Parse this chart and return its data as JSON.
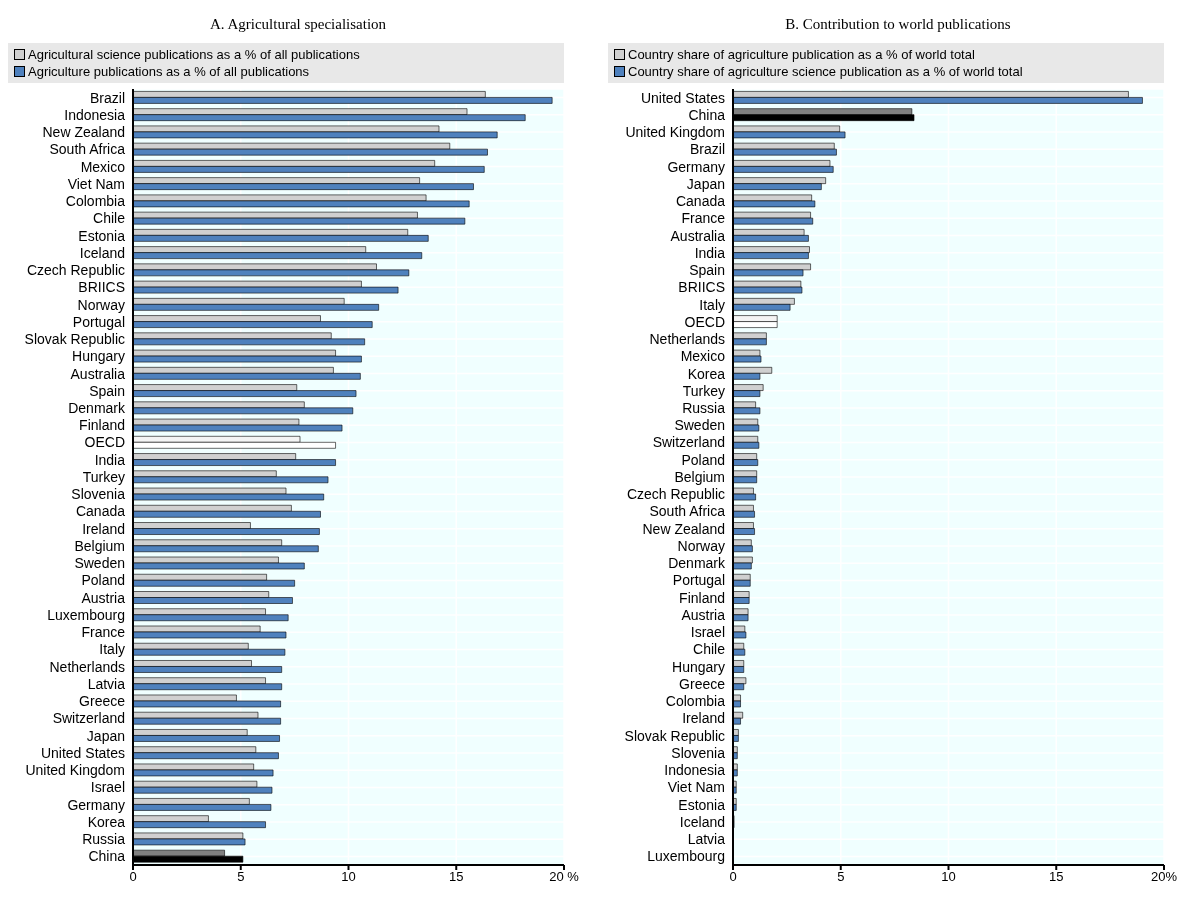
{
  "chart_data": [
    {
      "type": "bar",
      "orientation": "horizontal",
      "title": "A. Agricultural specialisation",
      "categories": [
        "Brazil",
        "Indonesia",
        "New Zealand",
        "South Africa",
        "Mexico",
        "Viet Nam",
        "Colombia",
        "Chile",
        "Estonia",
        "Iceland",
        "Czech Republic",
        "BRIICS",
        "Norway",
        "Portugal",
        "Slovak Republic",
        "Hungary",
        "Australia",
        "Spain",
        "Denmark",
        "Finland",
        "OECD",
        "India",
        "Turkey",
        "Slovenia",
        "Canada",
        "Ireland",
        "Belgium",
        "Sweden",
        "Poland",
        "Austria",
        "Luxembourg",
        "France",
        "Italy",
        "Netherlands",
        "Latvia",
        "Greece",
        "Switzerland",
        "Japan",
        "United States",
        "United Kingdom",
        "Israel",
        "Germany",
        "Korea",
        "Russia",
        "China"
      ],
      "series": [
        {
          "name": "Agricultural science publications as a % of all publications",
          "color": "#d0d0d0",
          "colors": [
            "#d0d0d0",
            "#d0d0d0",
            "#d0d0d0",
            "#d0d0d0",
            "#d0d0d0",
            "#d0d0d0",
            "#d0d0d0",
            "#d0d0d0",
            "#d0d0d0",
            "#d0d0d0",
            "#d0d0d0",
            "#d0d0d0",
            "#d0d0d0",
            "#d0d0d0",
            "#d0d0d0",
            "#d0d0d0",
            "#d0d0d0",
            "#d0d0d0",
            "#d0d0d0",
            "#d0d0d0",
            "#f4f4f4",
            "#d0d0d0",
            "#d0d0d0",
            "#d0d0d0",
            "#d0d0d0",
            "#d0d0d0",
            "#d0d0d0",
            "#d0d0d0",
            "#d0d0d0",
            "#d0d0d0",
            "#d0d0d0",
            "#d0d0d0",
            "#d0d0d0",
            "#d0d0d0",
            "#d0d0d0",
            "#d0d0d0",
            "#d0d0d0",
            "#d0d0d0",
            "#d0d0d0",
            "#d0d0d0",
            "#d0d0d0",
            "#d0d0d0",
            "#d0d0d0",
            "#d0d0d0",
            "#808080"
          ],
          "values": [
            16.35,
            15.5,
            14.2,
            14.7,
            14.0,
            13.3,
            13.6,
            13.2,
            12.75,
            10.8,
            11.3,
            10.6,
            9.8,
            8.7,
            9.2,
            9.4,
            9.3,
            7.6,
            7.95,
            7.7,
            7.75,
            7.55,
            6.65,
            7.1,
            7.35,
            5.45,
            6.9,
            6.75,
            6.2,
            6.3,
            6.15,
            5.9,
            5.35,
            5.5,
            6.15,
            4.8,
            5.8,
            5.3,
            5.7,
            5.6,
            5.75,
            5.4,
            3.5,
            5.1,
            4.25
          ]
        },
        {
          "name": "Agriculture publications as a % of all publications",
          "color": "#4f81bd",
          "colors": [
            "#4f81bd",
            "#4f81bd",
            "#4f81bd",
            "#4f81bd",
            "#4f81bd",
            "#4f81bd",
            "#4f81bd",
            "#4f81bd",
            "#4f81bd",
            "#4f81bd",
            "#4f81bd",
            "#4f81bd",
            "#4f81bd",
            "#4f81bd",
            "#4f81bd",
            "#4f81bd",
            "#4f81bd",
            "#4f81bd",
            "#4f81bd",
            "#4f81bd",
            "#ffffff",
            "#4f81bd",
            "#4f81bd",
            "#4f81bd",
            "#4f81bd",
            "#4f81bd",
            "#4f81bd",
            "#4f81bd",
            "#4f81bd",
            "#4f81bd",
            "#4f81bd",
            "#4f81bd",
            "#4f81bd",
            "#4f81bd",
            "#4f81bd",
            "#4f81bd",
            "#4f81bd",
            "#4f81bd",
            "#4f81bd",
            "#4f81bd",
            "#4f81bd",
            "#4f81bd",
            "#4f81bd",
            "#4f81bd",
            "#000000"
          ],
          "values": [
            19.45,
            18.2,
            16.9,
            16.45,
            16.3,
            15.8,
            15.6,
            15.4,
            13.7,
            13.4,
            12.8,
            12.3,
            11.4,
            11.1,
            10.75,
            10.6,
            10.55,
            10.35,
            10.2,
            9.7,
            9.4,
            9.4,
            9.05,
            8.85,
            8.7,
            8.65,
            8.6,
            7.95,
            7.5,
            7.4,
            7.2,
            7.1,
            7.05,
            6.9,
            6.9,
            6.85,
            6.85,
            6.8,
            6.75,
            6.5,
            6.45,
            6.4,
            6.15,
            5.2,
            5.1
          ]
        }
      ],
      "xlim": [
        0,
        20
      ],
      "xticks": [
        0,
        5,
        10,
        15,
        {
          "value": 20,
          "label": "20 %"
        }
      ],
      "grid": true,
      "legend": "top"
    },
    {
      "type": "bar",
      "orientation": "horizontal",
      "title": "B. Contribution to world publications",
      "categories": [
        "United States",
        "China",
        "United Kingdom",
        "Brazil",
        "Germany",
        "Japan",
        "Canada",
        "France",
        "Australia",
        "India",
        "Spain",
        "BRIICS",
        "Italy",
        "OECD",
        "Netherlands",
        "Mexico",
        "Korea",
        "Turkey",
        "Russia",
        "Sweden",
        "Switzerland",
        "Poland",
        "Belgium",
        "Czech Republic",
        "South Africa",
        "New Zealand",
        "Norway",
        "Denmark",
        "Portugal",
        "Finland",
        "Austria",
        "Israel",
        "Chile",
        "Hungary",
        "Greece",
        "Colombia",
        "Ireland",
        "Slovak Republic",
        "Slovenia",
        "Indonesia",
        "Viet Nam",
        "Estonia",
        "Iceland",
        "Latvia",
        "Luxembourg"
      ],
      "series": [
        {
          "name": "Country share of agriculture publication as a % of world total",
          "color": "#d0d0d0",
          "colors": [
            "#d0d0d0",
            "#808080",
            "#d0d0d0",
            "#d0d0d0",
            "#d0d0d0",
            "#d0d0d0",
            "#d0d0d0",
            "#d0d0d0",
            "#d0d0d0",
            "#d0d0d0",
            "#d0d0d0",
            "#d0d0d0",
            "#d0d0d0",
            "#f4f4f4",
            "#d0d0d0",
            "#d0d0d0",
            "#d0d0d0",
            "#d0d0d0",
            "#d0d0d0",
            "#d0d0d0",
            "#d0d0d0",
            "#d0d0d0",
            "#d0d0d0",
            "#d0d0d0",
            "#d0d0d0",
            "#d0d0d0",
            "#d0d0d0",
            "#d0d0d0",
            "#d0d0d0",
            "#d0d0d0",
            "#d0d0d0",
            "#d0d0d0",
            "#d0d0d0",
            "#d0d0d0",
            "#d0d0d0",
            "#d0d0d0",
            "#d0d0d0",
            "#d0d0d0",
            "#d0d0d0",
            "#d0d0d0",
            "#d0d0d0",
            "#d0d0d0",
            "#d0d0d0",
            "#d0d0d0",
            "#d0d0d0"
          ],
          "values": [
            18.35,
            8.3,
            4.95,
            4.7,
            4.5,
            4.3,
            3.65,
            3.6,
            3.3,
            3.55,
            3.6,
            3.15,
            2.85,
            2.05,
            1.55,
            1.25,
            1.8,
            1.4,
            1.05,
            1.15,
            1.15,
            1.1,
            1.1,
            0.95,
            0.95,
            0.95,
            0.85,
            0.9,
            0.8,
            0.75,
            0.7,
            0.55,
            0.5,
            0.5,
            0.6,
            0.35,
            0.45,
            0.25,
            0.2,
            0.2,
            0.15,
            0.15,
            0.05,
            0.02,
            0
          ]
        },
        {
          "name": "Country share of agriculture science publication as a % of world total",
          "color": "#4f81bd",
          "colors": [
            "#4f81bd",
            "#000000",
            "#4f81bd",
            "#4f81bd",
            "#4f81bd",
            "#4f81bd",
            "#4f81bd",
            "#4f81bd",
            "#4f81bd",
            "#4f81bd",
            "#4f81bd",
            "#4f81bd",
            "#4f81bd",
            "#ffffff",
            "#4f81bd",
            "#4f81bd",
            "#4f81bd",
            "#4f81bd",
            "#4f81bd",
            "#4f81bd",
            "#4f81bd",
            "#4f81bd",
            "#4f81bd",
            "#4f81bd",
            "#4f81bd",
            "#4f81bd",
            "#4f81bd",
            "#4f81bd",
            "#4f81bd",
            "#4f81bd",
            "#4f81bd",
            "#4f81bd",
            "#4f81bd",
            "#4f81bd",
            "#4f81bd",
            "#4f81bd",
            "#4f81bd",
            "#4f81bd",
            "#4f81bd",
            "#4f81bd",
            "#4f81bd",
            "#4f81bd",
            "#4f81bd",
            "#4f81bd",
            "#4f81bd"
          ],
          "values": [
            19.0,
            8.4,
            5.2,
            4.8,
            4.65,
            4.1,
            3.8,
            3.7,
            3.5,
            3.5,
            3.25,
            3.2,
            2.65,
            2.05,
            1.55,
            1.3,
            1.25,
            1.25,
            1.25,
            1.2,
            1.2,
            1.15,
            1.1,
            1.05,
            1.0,
            1.0,
            0.9,
            0.85,
            0.8,
            0.75,
            0.7,
            0.6,
            0.55,
            0.5,
            0.5,
            0.35,
            0.35,
            0.25,
            0.2,
            0.2,
            0.15,
            0.15,
            0.05,
            0.02,
            0
          ]
        }
      ],
      "xlim": [
        0,
        20
      ],
      "xticks": [
        0,
        5,
        10,
        15,
        {
          "value": 20,
          "label": "20%"
        }
      ],
      "grid": true,
      "legend": "top"
    }
  ]
}
